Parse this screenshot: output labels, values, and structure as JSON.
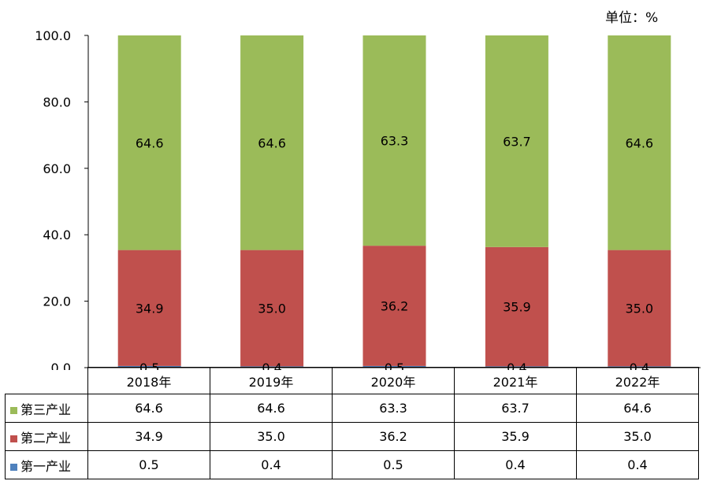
{
  "unit_label": "单位：%",
  "chart_data": {
    "type": "bar",
    "stacked": true,
    "categories": [
      "2018年",
      "2019年",
      "2020年",
      "2021年",
      "2022年"
    ],
    "ylim": [
      0,
      100
    ],
    "yticks": [
      "0.0",
      "20.0",
      "40.0",
      "60.0",
      "80.0",
      "100.0"
    ],
    "series": [
      {
        "name": "第一产业",
        "color": "#4f81bd",
        "values": [
          0.5,
          0.4,
          0.5,
          0.4,
          0.4
        ],
        "labels": [
          "0.5",
          "0.4",
          "0.5",
          "0.4",
          "0.4"
        ]
      },
      {
        "name": "第二产业",
        "color": "#c0504d",
        "values": [
          34.9,
          35.0,
          36.2,
          35.9,
          35.0
        ],
        "labels": [
          "34.9",
          "35.0",
          "36.2",
          "35.9",
          "35.0"
        ]
      },
      {
        "name": "第三产业",
        "color": "#9bbb59",
        "values": [
          64.6,
          64.6,
          63.3,
          63.7,
          64.6
        ],
        "labels": [
          "64.6",
          "64.6",
          "63.3",
          "63.7",
          "64.6"
        ]
      }
    ],
    "data_table": true,
    "grid": false
  }
}
